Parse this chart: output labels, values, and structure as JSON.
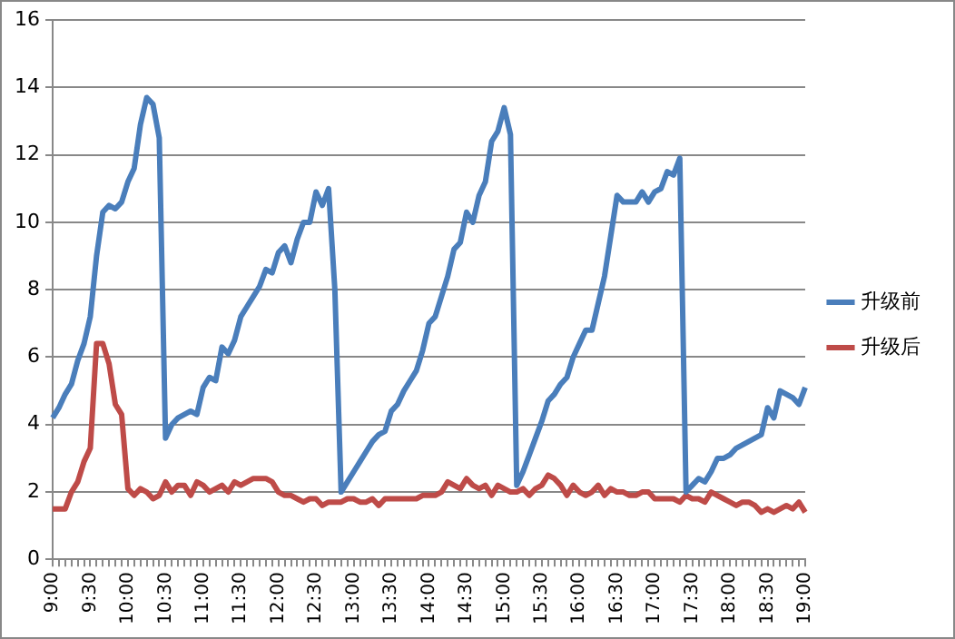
{
  "chart_data": {
    "type": "line",
    "categories": [
      "9:00",
      null,
      null,
      null,
      null,
      null,
      "9:30",
      null,
      null,
      null,
      null,
      null,
      "10:00",
      null,
      null,
      null,
      null,
      null,
      "10:30",
      null,
      null,
      null,
      null,
      null,
      "11:00",
      null,
      null,
      null,
      null,
      null,
      "11:30",
      null,
      null,
      null,
      null,
      null,
      "12:00",
      null,
      null,
      null,
      null,
      null,
      "12:30",
      null,
      null,
      null,
      null,
      null,
      "13:00",
      null,
      null,
      null,
      null,
      null,
      "13:30",
      null,
      null,
      null,
      null,
      null,
      "14:00",
      null,
      null,
      null,
      null,
      null,
      "14:30",
      null,
      null,
      null,
      null,
      null,
      "15:00",
      null,
      null,
      null,
      null,
      null,
      "15:30",
      null,
      null,
      null,
      null,
      null,
      "16:00",
      null,
      null,
      null,
      null,
      null,
      "16:30",
      null,
      null,
      null,
      null,
      null,
      "17:00",
      null,
      null,
      null,
      null,
      null,
      "17:30",
      null,
      null,
      null,
      null,
      null,
      "18:00",
      null,
      null,
      null,
      null,
      null,
      "18:30",
      null,
      null,
      null,
      null,
      null,
      "19:00"
    ],
    "series": [
      {
        "name": "升级前",
        "color": "#4a7ebb",
        "values": [
          4.2,
          4.5,
          4.9,
          5.2,
          5.9,
          6.4,
          7.2,
          9.0,
          10.3,
          10.5,
          10.4,
          10.6,
          11.2,
          11.6,
          12.9,
          13.7,
          13.5,
          12.5,
          3.6,
          4.0,
          4.2,
          4.3,
          4.4,
          4.3,
          5.1,
          5.4,
          5.3,
          6.3,
          6.1,
          6.5,
          7.2,
          7.5,
          7.8,
          8.1,
          8.6,
          8.5,
          9.1,
          9.3,
          8.8,
          9.5,
          10.0,
          10.0,
          10.9,
          10.5,
          11.0,
          8.0,
          2.0,
          2.3,
          2.6,
          2.9,
          3.2,
          3.5,
          3.7,
          3.8,
          4.4,
          4.6,
          5.0,
          5.3,
          5.6,
          6.2,
          7.0,
          7.2,
          7.8,
          8.4,
          9.2,
          9.4,
          10.3,
          10.0,
          10.8,
          11.2,
          12.4,
          12.7,
          13.4,
          12.6,
          2.2,
          2.6,
          3.1,
          3.6,
          4.1,
          4.7,
          4.9,
          5.2,
          5.4,
          6.0,
          6.4,
          6.8,
          6.8,
          7.6,
          8.4,
          9.6,
          10.8,
          10.6,
          10.6,
          10.6,
          10.9,
          10.6,
          10.9,
          11.0,
          11.5,
          11.4,
          11.9,
          2.0,
          2.2,
          2.4,
          2.3,
          2.6,
          3.0,
          3.0,
          3.1,
          3.3,
          3.4,
          3.5,
          3.6,
          3.7,
          4.5,
          4.2,
          5.0,
          4.9,
          4.8,
          4.6,
          5.1
        ]
      },
      {
        "name": "升级后",
        "color": "#be4b48",
        "values": [
          1.5,
          1.5,
          1.5,
          2.0,
          2.3,
          2.9,
          3.3,
          6.4,
          6.4,
          5.8,
          4.6,
          4.3,
          2.1,
          1.9,
          2.1,
          2.0,
          1.8,
          1.9,
          2.3,
          2.0,
          2.2,
          2.2,
          1.9,
          2.3,
          2.2,
          2.0,
          2.1,
          2.2,
          2.0,
          2.3,
          2.2,
          2.3,
          2.4,
          2.4,
          2.4,
          2.3,
          2.0,
          1.9,
          1.9,
          1.8,
          1.7,
          1.8,
          1.8,
          1.6,
          1.7,
          1.7,
          1.7,
          1.8,
          1.8,
          1.7,
          1.7,
          1.8,
          1.6,
          1.8,
          1.8,
          1.8,
          1.8,
          1.8,
          1.8,
          1.9,
          1.9,
          1.9,
          2.0,
          2.3,
          2.2,
          2.1,
          2.4,
          2.2,
          2.1,
          2.2,
          1.9,
          2.2,
          2.1,
          2.0,
          2.0,
          2.1,
          1.9,
          2.1,
          2.2,
          2.5,
          2.4,
          2.2,
          1.9,
          2.2,
          2.0,
          1.9,
          2.0,
          2.2,
          1.9,
          2.1,
          2.0,
          2.0,
          1.9,
          1.9,
          2.0,
          2.0,
          1.8,
          1.8,
          1.8,
          1.8,
          1.7,
          1.9,
          1.8,
          1.8,
          1.7,
          2.0,
          1.9,
          1.8,
          1.7,
          1.6,
          1.7,
          1.7,
          1.6,
          1.4,
          1.5,
          1.4,
          1.5,
          1.6,
          1.5,
          1.7,
          1.4
        ]
      }
    ],
    "ylim": [
      0,
      16
    ],
    "yticks": [
      0,
      2,
      4,
      6,
      8,
      10,
      12,
      14,
      16
    ],
    "grid": "y",
    "legend": "right",
    "marker": "none",
    "line_style": "solid"
  }
}
